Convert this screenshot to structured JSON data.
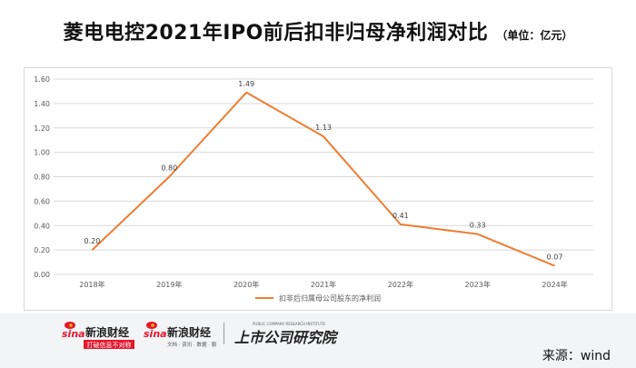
{
  "header": {
    "title": "菱电电控2021年IPO前后扣非归母净利润对比",
    "unit": "（单位：亿元）"
  },
  "chart_data": {
    "type": "line",
    "categories": [
      "2018年",
      "2019年",
      "2020年",
      "2021年",
      "2022年",
      "2023年",
      "2024年"
    ],
    "series": [
      {
        "name": "扣非后归属母公司股东的净利润",
        "values": [
          0.2,
          0.8,
          1.49,
          1.13,
          0.41,
          0.33,
          0.07
        ],
        "labels": [
          "0.20",
          "0.80",
          "1.49",
          "1.13",
          "0.41",
          "0.33",
          "0.07"
        ],
        "color": "#ED7D31"
      }
    ],
    "ylim": [
      0,
      1.6
    ],
    "yticks": [
      "0.00",
      "0.20",
      "0.40",
      "0.60",
      "0.80",
      "1.00",
      "1.20",
      "1.40",
      "1.60"
    ],
    "grid": true,
    "legend": "bottom",
    "colors": {
      "line": "#ED7D31",
      "grid": "#d9d9d9",
      "axis_text": "#595959"
    }
  },
  "footer": {
    "logo1_text": "新浪财经",
    "logo1_brand": "sina",
    "logo1_slogan": "打破信息不对称",
    "logo2_text": "新浪财经",
    "logo2_brand": "sina",
    "logo2_tagline": "文档 · 资讯 · 数据 · 服务",
    "logo3_text": "上市公司研究院",
    "logo3_en": "PUBLIC COMPANY RESEARCH INSTITUTE",
    "source_text": "来源：wind"
  }
}
